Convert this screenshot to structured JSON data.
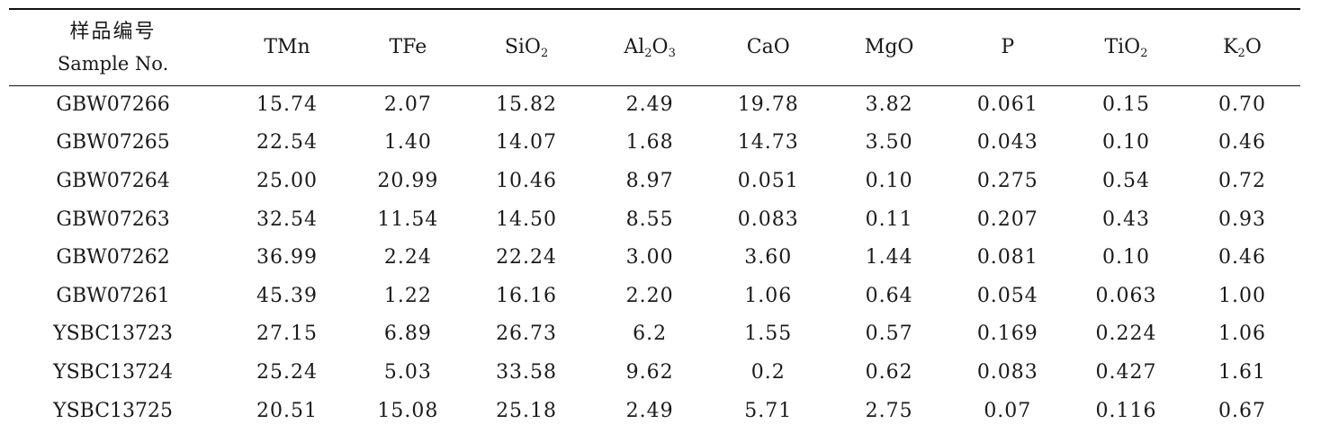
{
  "table": {
    "header": {
      "sample_zh": "样品编号",
      "sample_en": "Sample No.",
      "columns": [
        {
          "main": "TMn",
          "sub": "",
          "tail": ""
        },
        {
          "main": "TFe",
          "sub": "",
          "tail": ""
        },
        {
          "main": "SiO",
          "sub": "2",
          "tail": ""
        },
        {
          "main": "Al",
          "sub": "2",
          "tail": "O",
          "sub2": "3"
        },
        {
          "main": "CaO",
          "sub": "",
          "tail": ""
        },
        {
          "main": "MgO",
          "sub": "",
          "tail": ""
        },
        {
          "main": "P",
          "sub": "",
          "tail": ""
        },
        {
          "main": "TiO",
          "sub": "2",
          "tail": ""
        },
        {
          "main": "K",
          "sub": "2",
          "tail": "O"
        }
      ]
    },
    "rows": [
      {
        "sample": "GBW07266",
        "values": [
          "15.74",
          "2.07",
          "15.82",
          "2.49",
          "19.78",
          "3.82",
          "0.061",
          "0.15",
          "0.70"
        ]
      },
      {
        "sample": "GBW07265",
        "values": [
          "22.54",
          "1.40",
          "14.07",
          "1.68",
          "14.73",
          "3.50",
          "0.043",
          "0.10",
          "0.46"
        ]
      },
      {
        "sample": "GBW07264",
        "values": [
          "25.00",
          "20.99",
          "10.46",
          "8.97",
          "0.051",
          "0.10",
          "0.275",
          "0.54",
          "0.72"
        ]
      },
      {
        "sample": "GBW07263",
        "values": [
          "32.54",
          "11.54",
          "14.50",
          "8.55",
          "0.083",
          "0.11",
          "0.207",
          "0.43",
          "0.93"
        ]
      },
      {
        "sample": "GBW07262",
        "values": [
          "36.99",
          "2.24",
          "22.24",
          "3.00",
          "3.60",
          "1.44",
          "0.081",
          "0.10",
          "0.46"
        ]
      },
      {
        "sample": "GBW07261",
        "values": [
          "45.39",
          "1.22",
          "16.16",
          "2.20",
          "1.06",
          "0.64",
          "0.054",
          "0.063",
          "1.00"
        ]
      },
      {
        "sample": "YSBC13723",
        "values": [
          "27.15",
          "6.89",
          "26.73",
          "6.2",
          "1.55",
          "0.57",
          "0.169",
          "0.224",
          "1.06"
        ]
      },
      {
        "sample": "YSBC13724",
        "values": [
          "25.24",
          "5.03",
          "33.58",
          "9.62",
          "0.2",
          "0.62",
          "0.083",
          "0.427",
          "1.61"
        ]
      },
      {
        "sample": "YSBC13725",
        "values": [
          "20.51",
          "15.08",
          "25.18",
          "2.49",
          "5.71",
          "2.75",
          "0.07",
          "0.116",
          "0.67"
        ]
      }
    ]
  }
}
